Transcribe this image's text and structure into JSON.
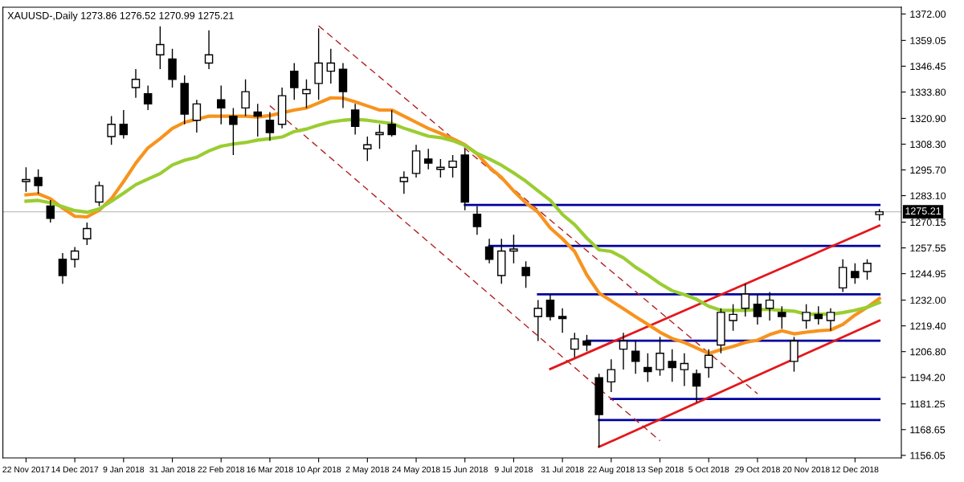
{
  "chart_data": {
    "type": "candlestick",
    "title": "XAUUSD-,Daily 1273.86 1276.52 1270.99 1275.21",
    "categories": [
      "22 Nov 2017",
      null,
      null,
      null,
      "14 Dec 2017",
      null,
      null,
      null,
      "9 Jan 2018",
      null,
      null,
      null,
      "31 Jan 2018",
      null,
      null,
      null,
      "22 Feb 2018",
      null,
      null,
      null,
      "16 Mar 2018",
      null,
      null,
      null,
      "10 Apr 2018",
      null,
      null,
      null,
      "2 May 2018",
      null,
      null,
      null,
      "24 May 2018",
      null,
      null,
      null,
      "15 Jun 2018",
      null,
      null,
      null,
      "9 Jul 2018",
      null,
      null,
      null,
      "31 Jul 2018",
      null,
      null,
      null,
      "22 Aug 2018",
      null,
      null,
      null,
      "13 Sep 2018",
      null,
      null,
      null,
      "5 Oct 2018",
      null,
      null,
      null,
      "29 Oct 2018",
      null,
      null,
      null,
      "20 Nov 2018",
      null,
      null,
      null,
      "12 Dec 2018",
      null,
      null
    ],
    "color": "#000000",
    "ohlc": [
      [
        1290,
        1297,
        1285,
        1291
      ],
      [
        1292,
        1296,
        1284,
        1288
      ],
      [
        1278,
        1281,
        1270,
        1272
      ],
      [
        1252,
        1255,
        1240,
        1244
      ],
      [
        1252,
        1258,
        1248,
        1256
      ],
      [
        1262,
        1270,
        1259,
        1267
      ],
      [
        1280,
        1290,
        1278,
        1288
      ],
      [
        1312,
        1322,
        1308,
        1318
      ],
      [
        1318,
        1325,
        1311,
        1313
      ],
      [
        1336,
        1345,
        1331,
        1340
      ],
      [
        1333,
        1337,
        1325,
        1328
      ],
      [
        1352,
        1366,
        1345,
        1357
      ],
      [
        1350,
        1355,
        1336,
        1340
      ],
      [
        1338,
        1342,
        1318,
        1323
      ],
      [
        1320,
        1330,
        1314,
        1328
      ],
      [
        1348,
        1364,
        1345,
        1352
      ],
      [
        1330,
        1337,
        1318,
        1326
      ],
      [
        1322,
        1326,
        1303,
        1318
      ],
      [
        1326,
        1340,
        1322,
        1334
      ],
      [
        1324,
        1328,
        1312,
        1322
      ],
      [
        1320,
        1324,
        1310,
        1314
      ],
      [
        1318,
        1336,
        1316,
        1332
      ],
      [
        1344,
        1348,
        1330,
        1336
      ],
      [
        1333,
        1340,
        1326,
        1335
      ],
      [
        1338,
        1365,
        1330,
        1348
      ],
      [
        1344,
        1355,
        1338,
        1348
      ],
      [
        1345,
        1348,
        1326,
        1334
      ],
      [
        1325,
        1328,
        1313,
        1317
      ],
      [
        1306,
        1312,
        1300,
        1308
      ],
      [
        1313,
        1318,
        1306,
        1314
      ],
      [
        1318,
        1325,
        1312,
        1313
      ],
      [
        1290,
        1295,
        1284,
        1292
      ],
      [
        1294,
        1308,
        1292,
        1305
      ],
      [
        1301,
        1306,
        1296,
        1299
      ],
      [
        1296,
        1301,
        1292,
        1297
      ],
      [
        1297,
        1303,
        1292,
        1300
      ],
      [
        1303,
        1306,
        1276,
        1280
      ],
      [
        1274,
        1278,
        1264,
        1268
      ],
      [
        1258,
        1262,
        1250,
        1252
      ],
      [
        1244,
        1262,
        1240,
        1256
      ],
      [
        1256,
        1264,
        1250,
        1257
      ],
      [
        1248,
        1251,
        1238,
        1244
      ],
      [
        1224,
        1232,
        1212,
        1228
      ],
      [
        1232,
        1235,
        1222,
        1224
      ],
      [
        1224,
        1228,
        1216,
        1223
      ],
      [
        1208,
        1216,
        1204,
        1213
      ],
      [
        1212,
        1215,
        1207,
        1210
      ],
      [
        1194,
        1196,
        1160,
        1176
      ],
      [
        1192,
        1203,
        1187,
        1198
      ],
      [
        1208,
        1216,
        1198,
        1212
      ],
      [
        1207,
        1212,
        1196,
        1202
      ],
      [
        1199,
        1206,
        1192,
        1197
      ],
      [
        1198,
        1214,
        1195,
        1206
      ],
      [
        1202,
        1208,
        1192,
        1199
      ],
      [
        1198,
        1206,
        1190,
        1201
      ],
      [
        1196,
        1198,
        1182,
        1190
      ],
      [
        1199,
        1208,
        1194,
        1205
      ],
      [
        1210,
        1228,
        1206,
        1226
      ],
      [
        1222,
        1230,
        1217,
        1225
      ],
      [
        1228,
        1240,
        1224,
        1235
      ],
      [
        1230,
        1235,
        1220,
        1224
      ],
      [
        1228,
        1236,
        1222,
        1232
      ],
      [
        1226,
        1229,
        1218,
        1224
      ],
      [
        1202,
        1214,
        1197,
        1212
      ],
      [
        1222,
        1230,
        1218,
        1226
      ],
      [
        1225,
        1229,
        1220,
        1223
      ],
      [
        1222,
        1228,
        1217,
        1226
      ],
      [
        1238,
        1252,
        1236,
        1248
      ],
      [
        1246,
        1250,
        1240,
        1243
      ],
      [
        1246,
        1252,
        1242,
        1250
      ],
      [
        1273.86,
        1276.52,
        1270.99,
        1275.21
      ]
    ],
    "series": [
      {
        "type": "line",
        "color": "#f7931e",
        "line_style": "solid",
        "values": [
          1283.5,
          1284,
          1281.6,
          1277,
          1273,
          1272.7,
          1276,
          1281.6,
          1290,
          1299,
          1306.5,
          1311,
          1316,
          1319,
          null,
          1322,
          1322,
          1322,
          1322,
          1321.6,
          1322.3,
          null,
          1325,
          1326,
          1328.5,
          1331,
          1330.8,
          1329,
          1327,
          1325,
          1325,
          1322,
          1319,
          1316,
          1313.6,
          1311,
          1308,
          1303.5,
          1297,
          1292,
          1285.4,
          1279.6,
          1275,
          1267.3,
          1262,
          1255.8,
          1244.3,
          1235.5,
          1231.6,
          1227.8,
          1223.9,
          1220.1,
          1216.3,
          1213.2,
          1211.3,
          1208.6,
          1205.9,
          1207.8,
          1209.3,
          1211.3,
          1212.4,
          1215.1,
          1217,
          1215.5,
          1216.3,
          1217,
          1217.4,
          1220.1,
          1224.7,
          1228.5,
          1232.8
        ]
      },
      {
        "type": "line",
        "color": "#9acd32",
        "line_style": "solid",
        "values": [
          1280.4,
          1280.8,
          1279.6,
          1277.7,
          1275.8,
          1275,
          1276.6,
          1280.4,
          1284.3,
          1288.5,
          1291.2,
          1293.9,
          1298.1,
          1300.4,
          1301.9,
          1305,
          1307.3,
          1308.4,
          1309.1,
          1310.3,
          1311,
          1311.8,
          1314.5,
          1315.7,
          1317.6,
          1319.2,
          1320,
          1320.4,
          1320,
          1319.2,
          1318.4,
          1316.1,
          1314.2,
          1312.2,
          1311.5,
          1310,
          1307.7,
          1303.8,
          1301.1,
          1298,
          1294.2,
          1290.2,
          1285.4,
          1280.8,
          1273.9,
          1268.9,
          1262.3,
          1256.6,
          1255.8,
          1252.7,
          1248.1,
          1244.3,
          1240.1,
          1236.6,
          1234.7,
          1232.4,
          1229,
          1227,
          1227,
          1227,
          1227.4,
          1227.4,
          1227,
          1226.6,
          1225.1,
          1225.1,
          1225.1,
          1225.9,
          1227,
          1228.5,
          1230.8
        ]
      },
      {
        "type": "line",
        "color": "#00009c",
        "line_style": "solid",
        "values": [
          null,
          null,
          null,
          null,
          null,
          null,
          null,
          null,
          null,
          null,
          null,
          null,
          null,
          null,
          null,
          null,
          null,
          null,
          null,
          null,
          null,
          null,
          null,
          null,
          null,
          null,
          null,
          null,
          null,
          null,
          null,
          null,
          null,
          null,
          null,
          null,
          1278.6,
          null,
          null,
          null,
          null,
          null,
          null,
          null,
          null,
          null,
          null,
          null,
          null,
          null,
          null,
          null,
          null,
          null,
          null,
          null,
          null,
          null,
          null,
          null,
          null,
          null,
          null,
          null,
          null,
          null,
          null,
          null,
          null,
          null,
          1278.6
        ]
      },
      {
        "type": "line",
        "color": "#00009c",
        "line_style": "solid",
        "values": [
          null,
          null,
          null,
          null,
          null,
          null,
          null,
          null,
          null,
          null,
          null,
          null,
          null,
          null,
          null,
          null,
          null,
          null,
          null,
          null,
          null,
          null,
          null,
          null,
          null,
          null,
          null,
          null,
          null,
          null,
          null,
          null,
          null,
          null,
          null,
          null,
          null,
          null,
          1258.5,
          null,
          null,
          null,
          null,
          null,
          null,
          null,
          null,
          null,
          null,
          null,
          null,
          null,
          null,
          null,
          null,
          null,
          null,
          null,
          null,
          null,
          null,
          null,
          null,
          null,
          null,
          null,
          null,
          null,
          null,
          null,
          1258.5
        ]
      },
      {
        "type": "line",
        "color": "#00009c",
        "line_style": "solid",
        "values": [
          null,
          null,
          null,
          null,
          null,
          null,
          null,
          null,
          null,
          null,
          null,
          null,
          null,
          null,
          null,
          null,
          null,
          null,
          null,
          null,
          null,
          null,
          null,
          null,
          null,
          null,
          null,
          null,
          null,
          null,
          null,
          null,
          null,
          null,
          null,
          null,
          null,
          null,
          null,
          null,
          null,
          null,
          1234.8,
          null,
          null,
          null,
          null,
          null,
          null,
          null,
          null,
          null,
          null,
          null,
          null,
          null,
          null,
          null,
          null,
          null,
          null,
          null,
          null,
          null,
          null,
          null,
          null,
          null,
          null,
          null,
          1234.8
        ]
      },
      {
        "type": "line",
        "color": "#00009c",
        "line_style": "solid",
        "values": [
          null,
          null,
          null,
          null,
          null,
          null,
          null,
          null,
          null,
          null,
          null,
          null,
          null,
          null,
          null,
          null,
          null,
          null,
          null,
          null,
          null,
          null,
          null,
          null,
          null,
          null,
          null,
          null,
          null,
          null,
          null,
          null,
          null,
          null,
          null,
          null,
          null,
          null,
          null,
          null,
          null,
          null,
          null,
          null,
          null,
          null,
          1212.1,
          null,
          null,
          null,
          null,
          null,
          null,
          null,
          null,
          null,
          null,
          null,
          null,
          null,
          null,
          null,
          null,
          null,
          null,
          null,
          null,
          null,
          null,
          null,
          1212.1
        ]
      },
      {
        "type": "line",
        "color": "#00009c",
        "line_style": "solid",
        "values": [
          null,
          null,
          null,
          null,
          null,
          null,
          null,
          null,
          null,
          null,
          null,
          null,
          null,
          null,
          null,
          null,
          null,
          null,
          null,
          null,
          null,
          null,
          null,
          null,
          null,
          null,
          null,
          null,
          null,
          null,
          null,
          null,
          null,
          null,
          null,
          null,
          null,
          null,
          null,
          null,
          null,
          null,
          null,
          null,
          null,
          null,
          null,
          null,
          1183.6,
          null,
          null,
          null,
          null,
          null,
          null,
          null,
          null,
          null,
          null,
          null,
          null,
          null,
          null,
          null,
          null,
          null,
          null,
          null,
          null,
          null,
          1183.6
        ]
      },
      {
        "type": "line",
        "color": "#00009c",
        "line_style": "solid",
        "values": [
          null,
          null,
          null,
          null,
          null,
          null,
          null,
          null,
          null,
          null,
          null,
          null,
          null,
          null,
          null,
          null,
          null,
          null,
          null,
          null,
          null,
          null,
          null,
          null,
          null,
          null,
          null,
          null,
          null,
          null,
          null,
          null,
          null,
          null,
          null,
          null,
          null,
          null,
          null,
          null,
          null,
          null,
          null,
          null,
          null,
          null,
          null,
          1173.3,
          null,
          null,
          null,
          null,
          null,
          null,
          null,
          null,
          null,
          null,
          null,
          null,
          null,
          null,
          null,
          null,
          null,
          null,
          null,
          null,
          null,
          null,
          1173.3
        ]
      },
      {
        "type": "line",
        "color": "#e3171c",
        "line_style": "solid",
        "values": [
          null,
          null,
          null,
          null,
          null,
          null,
          null,
          null,
          null,
          null,
          null,
          null,
          null,
          null,
          null,
          null,
          null,
          null,
          null,
          null,
          null,
          null,
          null,
          null,
          null,
          null,
          null,
          null,
          null,
          null,
          null,
          null,
          null,
          null,
          null,
          null,
          null,
          null,
          null,
          null,
          null,
          null,
          null,
          1198.3,
          null,
          null,
          null,
          null,
          null,
          null,
          null,
          null,
          null,
          null,
          null,
          null,
          null,
          null,
          null,
          null,
          null,
          null,
          null,
          null,
          null,
          null,
          null,
          null,
          null,
          null,
          1268.5
        ]
      },
      {
        "type": "line",
        "color": "#e3171c",
        "line_style": "solid",
        "values": [
          null,
          null,
          null,
          null,
          null,
          null,
          null,
          null,
          null,
          null,
          null,
          null,
          null,
          null,
          null,
          null,
          null,
          null,
          null,
          null,
          null,
          null,
          null,
          null,
          null,
          null,
          null,
          null,
          null,
          null,
          null,
          null,
          null,
          null,
          null,
          null,
          null,
          null,
          null,
          null,
          null,
          null,
          null,
          null,
          null,
          null,
          null,
          1160.2,
          null,
          null,
          null,
          null,
          null,
          null,
          null,
          null,
          null,
          null,
          null,
          null,
          null,
          null,
          null,
          null,
          null,
          null,
          null,
          null,
          null,
          null,
          1222
        ]
      },
      {
        "type": "line",
        "color": "#b22222",
        "line_style": "dashed",
        "values": [
          null,
          null,
          null,
          null,
          null,
          null,
          null,
          null,
          null,
          null,
          null,
          null,
          null,
          null,
          null,
          null,
          null,
          null,
          null,
          null,
          null,
          null,
          null,
          null,
          1366.2,
          null,
          null,
          null,
          null,
          null,
          null,
          null,
          null,
          null,
          null,
          null,
          null,
          null,
          null,
          null,
          null,
          null,
          null,
          null,
          null,
          null,
          null,
          null,
          null,
          null,
          null,
          null,
          null,
          null,
          null,
          null,
          null,
          null,
          null,
          null,
          1186.2,
          null,
          null,
          null,
          null,
          null,
          null,
          null,
          null,
          null,
          null
        ]
      },
      {
        "type": "line",
        "color": "#b22222",
        "line_style": "dashed",
        "values": [
          null,
          null,
          null,
          null,
          null,
          null,
          null,
          null,
          null,
          null,
          null,
          null,
          null,
          null,
          null,
          null,
          null,
          null,
          null,
          null,
          1327.1,
          null,
          null,
          null,
          null,
          null,
          null,
          null,
          null,
          null,
          null,
          null,
          null,
          null,
          null,
          null,
          null,
          null,
          null,
          null,
          null,
          null,
          null,
          null,
          null,
          null,
          null,
          null,
          null,
          null,
          null,
          null,
          1163.2,
          null,
          null,
          null,
          null,
          null,
          null,
          null,
          null,
          null,
          null,
          null,
          null,
          null,
          null,
          null,
          null,
          null,
          null
        ]
      }
    ],
    "ref_lines": [
      {
        "axis": "y",
        "value": 1275.21,
        "label": "1275.21",
        "color": "#c0c0c0",
        "line_style": "solid"
      }
    ],
    "ylim": [
      1154.8,
      1375.3
    ],
    "yticks": [
      {
        "value": 1372.0,
        "label": "1372.00"
      },
      {
        "value": 1359.05,
        "label": "1359.05"
      },
      {
        "value": 1346.45,
        "label": "1346.45"
      },
      {
        "value": 1333.8,
        "label": "1333.80"
      },
      {
        "value": 1320.9,
        "label": "1320.90"
      },
      {
        "value": 1308.3,
        "label": "1308.30"
      },
      {
        "value": 1295.7,
        "label": "1295.70"
      },
      {
        "value": 1283.1,
        "label": "1283.10"
      },
      {
        "value": 1270.15,
        "label": "1270.15"
      },
      {
        "value": 1257.55,
        "label": "1257.55"
      },
      {
        "value": 1244.95,
        "label": "1244.95"
      },
      {
        "value": 1232.0,
        "label": "1232.00"
      },
      {
        "value": 1219.4,
        "label": "1219.40"
      },
      {
        "value": 1206.8,
        "label": "1206.80"
      },
      {
        "value": 1194.2,
        "label": "1194.20"
      },
      {
        "value": 1181.25,
        "label": "1181.25"
      },
      {
        "value": 1168.65,
        "label": "1168.65"
      },
      {
        "value": 1156.05,
        "label": "1156.05"
      }
    ],
    "grid": false,
    "legend": false
  }
}
